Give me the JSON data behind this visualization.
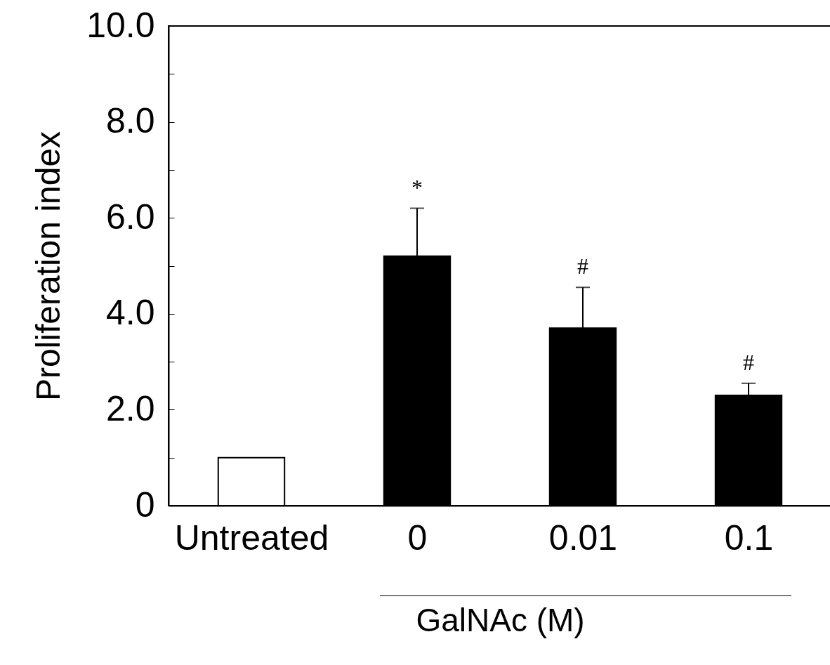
{
  "chart_data": {
    "type": "bar",
    "ylabel": "Proliferation index",
    "xlabel": "GalNAc (M)",
    "categories": [
      "Untreated",
      "0",
      "0.01",
      "0.1"
    ],
    "values": [
      1.0,
      5.2,
      3.7,
      2.3
    ],
    "colors": [
      "#ffffff",
      "#000000",
      "#000000",
      "#000000"
    ],
    "errors": [
      null,
      [
        5.2,
        6.2
      ],
      [
        3.7,
        4.55
      ],
      [
        2.3,
        2.55
      ]
    ],
    "ylim": [
      0,
      10
    ],
    "yticks": [
      0,
      {
        "value": 1,
        "label": null
      },
      {
        "value": 2,
        "label": "2.0"
      },
      {
        "value": 3,
        "label": null
      },
      {
        "value": 4,
        "label": "4.0"
      },
      {
        "value": 5,
        "label": null
      },
      {
        "value": 6,
        "label": "6.0"
      },
      {
        "value": 7,
        "label": null
      },
      {
        "value": 8,
        "label": "8.0"
      },
      {
        "value": 9,
        "label": null
      },
      {
        "value": 10,
        "label": "10.0"
      }
    ],
    "annotations": [
      "*",
      "#",
      "#"
    ]
  }
}
